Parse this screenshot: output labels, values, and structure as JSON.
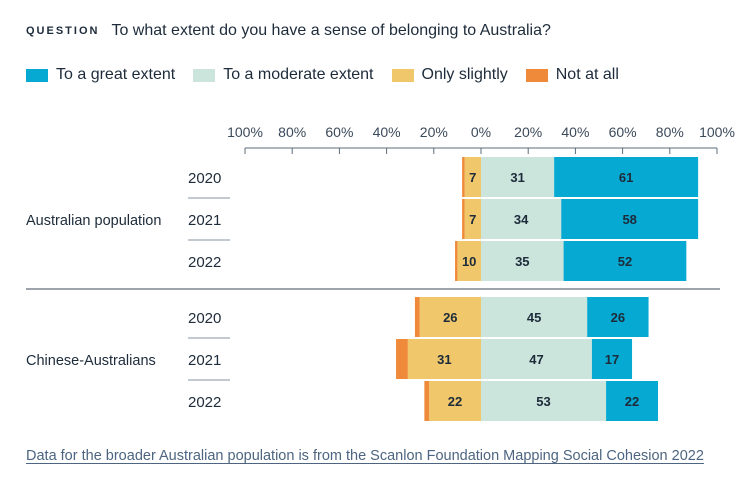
{
  "question": {
    "kicker": "QUESTION",
    "text": "To what extent do you have a sense of belonging to Australia?"
  },
  "footnote": "Data for the broader Australian population is from the Scanlon Foundation Mapping Social Cohesion 2022",
  "colors": {
    "great": "#06a9d1",
    "moderate": "#cbe4dc",
    "slightly": "#f0c76a",
    "not_at_all": "#ef8a3a",
    "text": "#1d2b3a",
    "axis": "#5b6b7b"
  },
  "chart_data": {
    "type": "bar",
    "orientation": "horizontal",
    "stacked": "diverging",
    "title": "To what extent do you have a sense of belonging to Australia?",
    "xlim": [
      -100,
      100
    ],
    "tick_labels": [
      "100%",
      "80%",
      "60%",
      "40%",
      "20%",
      "0%",
      "20%",
      "40%",
      "60%",
      "80%",
      "100%"
    ],
    "legend_position": "top-left",
    "series": [
      {
        "key": "great",
        "name": "To a great extent",
        "color": "#06a9d1"
      },
      {
        "key": "moderate",
        "name": "To a moderate extent",
        "color": "#cbe4dc"
      },
      {
        "key": "slightly",
        "name": "Only slightly",
        "color": "#f0c76a"
      },
      {
        "key": "not_at_all",
        "name": "Not at all",
        "color": "#ef8a3a"
      }
    ],
    "groups": [
      {
        "name": "Australian population",
        "rows": [
          {
            "year": "2020",
            "great": 61,
            "moderate": 31,
            "slightly": 7,
            "not_at_all": 1
          },
          {
            "year": "2021",
            "great": 58,
            "moderate": 34,
            "slightly": 7,
            "not_at_all": 1
          },
          {
            "year": "2022",
            "great": 52,
            "moderate": 35,
            "slightly": 10,
            "not_at_all": 1
          }
        ]
      },
      {
        "name": "Chinese-Australians",
        "rows": [
          {
            "year": "2020",
            "great": 26,
            "moderate": 45,
            "slightly": 26,
            "not_at_all": 2
          },
          {
            "year": "2021",
            "great": 17,
            "moderate": 47,
            "slightly": 31,
            "not_at_all": 5
          },
          {
            "year": "2022",
            "great": 22,
            "moderate": 53,
            "slightly": 22,
            "not_at_all": 2
          }
        ]
      }
    ]
  }
}
